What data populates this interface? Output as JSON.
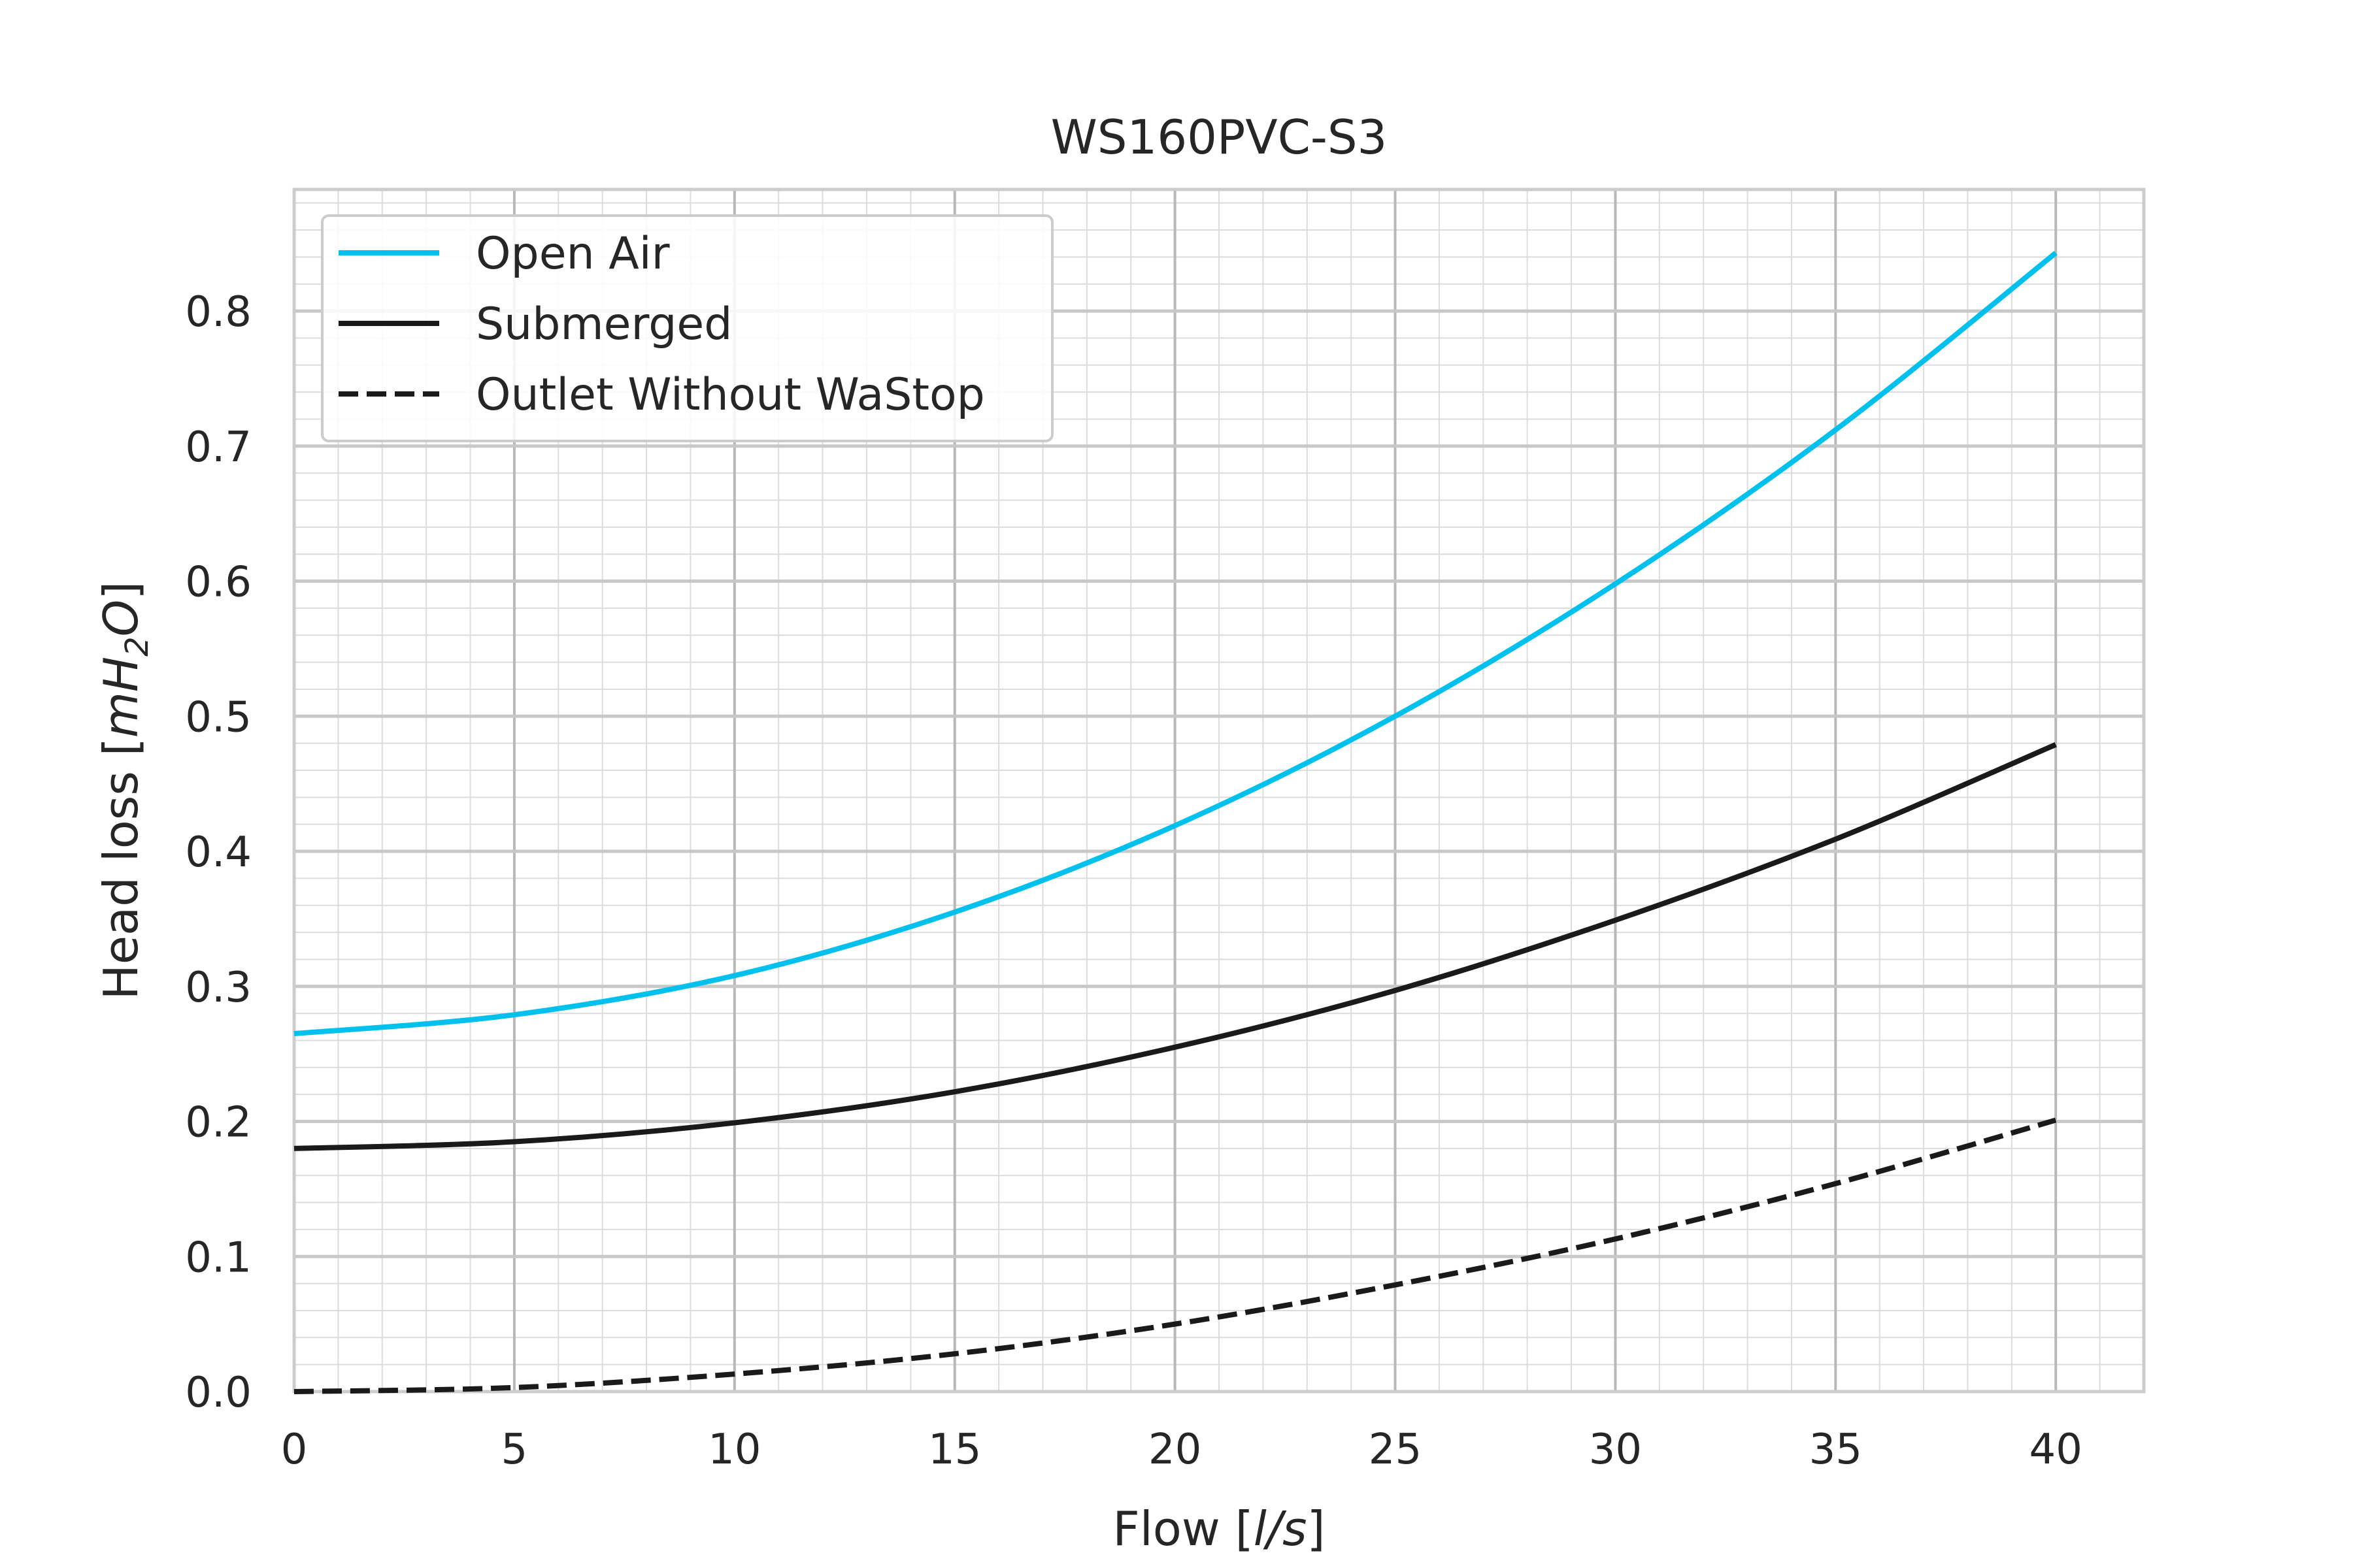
{
  "chart_data": {
    "type": "line",
    "title": "WS160PVC-S3",
    "xlabel": {
      "prefix": "Flow [",
      "var": "l/s",
      "suffix": "]"
    },
    "ylabel": {
      "prefix": "Head loss [",
      "var": "mH",
      "sub": "2",
      "var2": "O",
      "suffix": "]"
    },
    "xlim": [
      0,
      42
    ],
    "ylim": [
      0,
      0.89
    ],
    "xticks": [
      0,
      5,
      10,
      15,
      20,
      25,
      30,
      35,
      40
    ],
    "xtick_labels": [
      "0",
      "5",
      "10",
      "15",
      "20",
      "25",
      "30",
      "35",
      "40"
    ],
    "yticks": [
      0,
      0.1,
      0.2,
      0.3,
      0.4,
      0.5,
      0.6,
      0.7,
      0.8
    ],
    "ytick_labels": [
      "0.0",
      "0.1",
      "0.2",
      "0.3",
      "0.4",
      "0.5",
      "0.6",
      "0.7",
      "0.8"
    ],
    "grid": true,
    "minor_grid": true,
    "legend_position": "top-left",
    "x": [
      0,
      5,
      10,
      15,
      20,
      25,
      30,
      35,
      40
    ],
    "series": [
      {
        "name": "Open Air",
        "color": "#00c0ee",
        "style": "solid",
        "values": [
          0.265,
          0.279,
          0.308,
          0.355,
          0.419,
          0.5,
          0.598,
          0.712,
          0.843
        ]
      },
      {
        "name": "Submerged",
        "color": "#1a1a1a",
        "style": "solid",
        "values": [
          0.18,
          0.185,
          0.199,
          0.222,
          0.255,
          0.297,
          0.349,
          0.409,
          0.479
        ]
      },
      {
        "name": "Outlet Without WaStop",
        "color": "#1a1a1a",
        "style": "dashed",
        "values": [
          0.0,
          0.003,
          0.013,
          0.028,
          0.05,
          0.079,
          0.113,
          0.154,
          0.201
        ]
      }
    ]
  }
}
